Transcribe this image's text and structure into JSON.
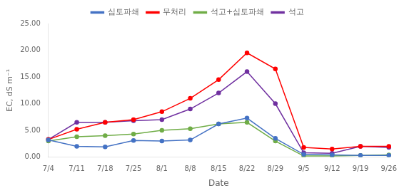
{
  "chart_data": {
    "type": "line",
    "categories": [
      "7/4",
      "7/11",
      "7/18",
      "7/25",
      "8/1",
      "8/8",
      "8/15",
      "8/22",
      "8/29",
      "9/5",
      "9/12",
      "9/19",
      "9/26"
    ],
    "series": [
      {
        "name": "심토파쇄",
        "color": "#4472C4",
        "values": [
          3.2,
          2.0,
          1.9,
          3.1,
          3.0,
          3.2,
          6.2,
          7.3,
          3.5,
          0.5,
          0.4,
          0.3,
          0.3
        ]
      },
      {
        "name": "무처리",
        "color": "#FF0000",
        "values": [
          3.3,
          5.2,
          6.5,
          7.0,
          8.5,
          11.0,
          14.5,
          19.5,
          16.5,
          1.8,
          1.5,
          2.0,
          2.0
        ]
      },
      {
        "name": "석고+심토파쇄",
        "color": "#70AD47",
        "values": [
          3.0,
          3.8,
          4.0,
          4.3,
          5.0,
          5.3,
          6.2,
          6.5,
          3.0,
          0.2,
          0.2,
          0.3,
          0.4
        ]
      },
      {
        "name": "석고",
        "color": "#7030A0",
        "values": [
          3.3,
          6.5,
          6.5,
          6.8,
          7.0,
          9.0,
          12.0,
          16.0,
          10.0,
          0.8,
          0.7,
          2.0,
          1.8
        ]
      }
    ],
    "xlabel": "Date",
    "ylabel": "EC, dS m⁻¹",
    "ylim": [
      0,
      25.0
    ],
    "yticks": [
      {
        "value": 0.0,
        "label": "0.00"
      },
      {
        "value": 5.0,
        "label": "5.00"
      },
      {
        "value": 10.0,
        "label": "10.00"
      },
      {
        "value": 15.0,
        "label": "15.00"
      },
      {
        "value": 20.0,
        "label": "20.00"
      },
      {
        "value": 25.0,
        "label": "25.00"
      }
    ],
    "grid": false,
    "legend": "top",
    "marker": "circle"
  }
}
